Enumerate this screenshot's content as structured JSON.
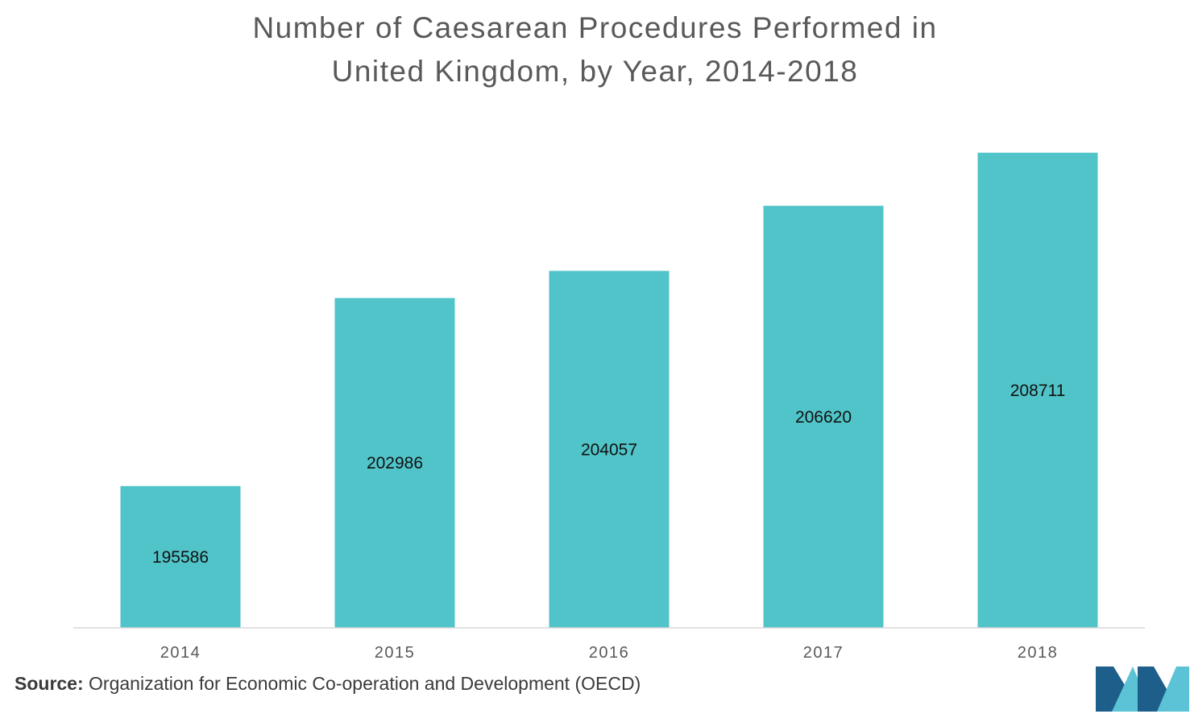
{
  "title_line1": "Number of Caesarean Procedures Performed in",
  "title_line2": "United Kingdom, by Year, 2014-2018",
  "source_label": "Source:",
  "source_text": "Organization for Economic Co-operation and Development (OECD)",
  "colors": {
    "bar": "#50c4c8",
    "axis": "#d9d9d9",
    "tick_text": "#595959",
    "label_text": "#111111",
    "logo_dark": "#1d5f8a",
    "logo_light": "#5bc3d5"
  },
  "chart_data": {
    "type": "bar",
    "title": "Number of Caesarean Procedures Performed in United Kingdom, by Year, 2014-2018",
    "xlabel": "",
    "ylabel": "",
    "categories": [
      "2014",
      "2015",
      "2016",
      "2017",
      "2018"
    ],
    "values": [
      195586,
      202986,
      204057,
      206620,
      208711
    ],
    "data_labels": [
      "195586",
      "202986",
      "204057",
      "206620",
      "208711"
    ],
    "ylim": [
      190000,
      210000
    ],
    "grid": false,
    "legend": "none"
  }
}
